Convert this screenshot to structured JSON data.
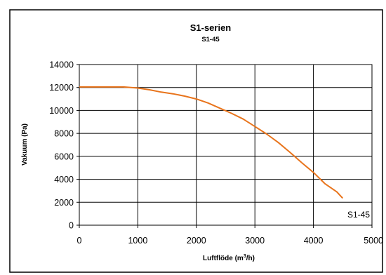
{
  "chart_data": {
    "type": "line",
    "title": "S1-serien",
    "subtitle": "S1-45",
    "xlabel": "Luftflöde  (m",
    "xlabel_sup": "3",
    "xlabel_end": "/h)",
    "ylabel": "Vakuum  (Pa)",
    "xlim": [
      0,
      5000
    ],
    "ylim": [
      0,
      14000
    ],
    "x_ticks": [
      "0",
      "1000",
      "2000",
      "3000",
      "4000",
      "5000"
    ],
    "y_ticks": [
      "0",
      "2000",
      "4000",
      "6000",
      "8000",
      "10000",
      "12000",
      "14000"
    ],
    "grid": true,
    "legend": "bottom-right",
    "series": [
      {
        "name": "S1-45",
        "color": "#e8741c",
        "x": [
          0,
          400,
          750,
          1000,
          1200,
          1400,
          1600,
          1800,
          2000,
          2200,
          2400,
          2600,
          2800,
          3000,
          3200,
          3400,
          3600,
          3800,
          4000,
          4200,
          4400,
          4500
        ],
        "y": [
          12050,
          12050,
          12050,
          11950,
          11800,
          11600,
          11450,
          11250,
          11000,
          10650,
          10200,
          9750,
          9250,
          8600,
          7950,
          7200,
          6350,
          5450,
          4600,
          3600,
          2900,
          2350
        ]
      }
    ]
  }
}
